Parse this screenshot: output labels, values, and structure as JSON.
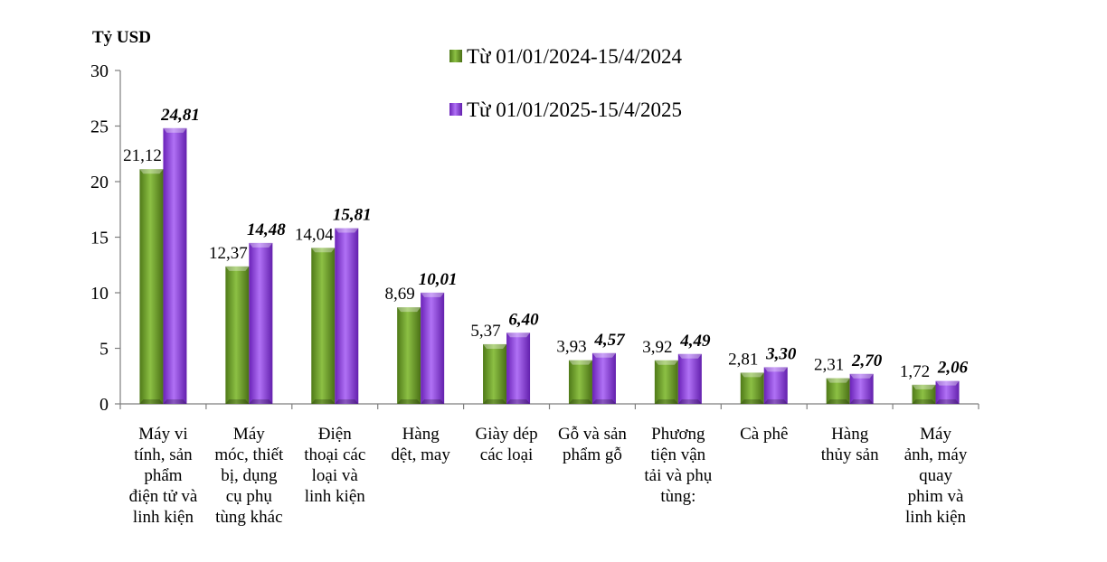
{
  "chart_data": {
    "type": "bar",
    "unit": "Tỷ USD",
    "ylim": [
      0,
      30
    ],
    "yticks": [
      0,
      5,
      10,
      15,
      20,
      25,
      30
    ],
    "ytick_labels": [
      "0",
      "5",
      "10",
      "15",
      "20",
      "25",
      "30"
    ],
    "grid": false,
    "legend_position": "top-center",
    "categories": [
      [
        "Máy vi",
        "tính, sản",
        "phẩm",
        "điện tử và",
        "linh kiện"
      ],
      [
        "Máy",
        "móc, thiết",
        "bị, dụng",
        "cụ phụ",
        "tùng khác"
      ],
      [
        "Điện",
        "thoại các",
        "loại và",
        "linh kiện"
      ],
      [
        "Hàng",
        "dệt, may"
      ],
      [
        "Giày dép",
        "các loại"
      ],
      [
        "Gỗ và sản",
        "phẩm gỗ"
      ],
      [
        "Phương",
        "tiện vận",
        "tải và phụ",
        "tùng:"
      ],
      [
        "Cà phê"
      ],
      [
        "Hàng",
        "thủy sản"
      ],
      [
        "Máy",
        "ảnh, máy",
        "quay",
        "phim và",
        "linh kiện"
      ]
    ],
    "series": [
      {
        "name": "Từ 01/01/2024-15/4/2024",
        "color": "#6b9a2a",
        "values": [
          21.12,
          12.37,
          14.04,
          8.69,
          5.37,
          3.93,
          3.92,
          2.81,
          2.31,
          1.72
        ],
        "labels": [
          "21,12",
          "12,37",
          "14,04",
          "8,69",
          "5,37",
          "3,93",
          "3,92",
          "2,81",
          "2,31",
          "1,72"
        ]
      },
      {
        "name": "Từ 01/01/2025-15/4/2025",
        "color": "#8a3ad8",
        "values": [
          24.81,
          14.48,
          15.81,
          10.01,
          6.4,
          4.57,
          4.49,
          3.3,
          2.7,
          2.06
        ],
        "labels": [
          "24,81",
          "14,48",
          "15,81",
          "10,01",
          "6,40",
          "4,57",
          "4,49",
          "3,30",
          "2,70",
          "2,06"
        ]
      }
    ]
  }
}
